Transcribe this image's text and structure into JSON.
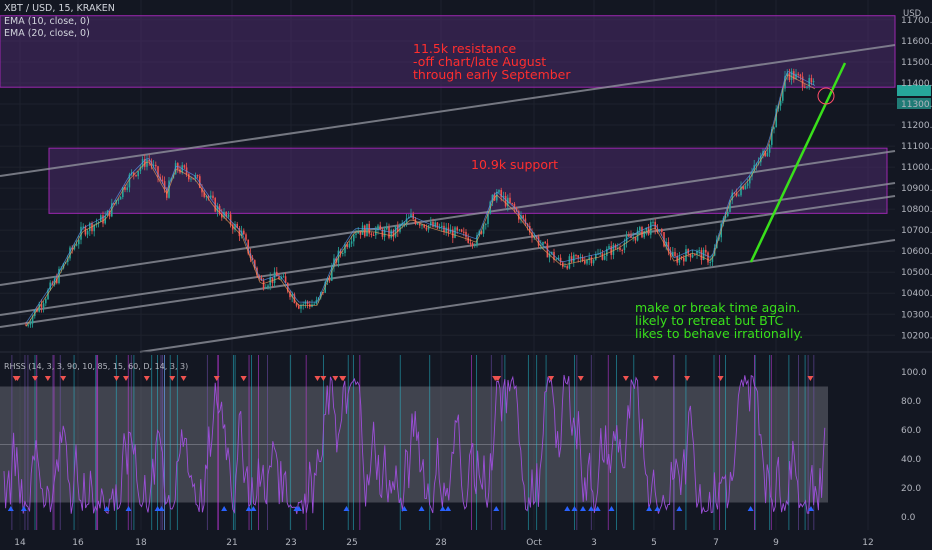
{
  "header": {
    "symbol_line": "XBT / USD, 15, KRAKEN",
    "indicator_1": "EMA (10, close, 0)",
    "indicator_2": "EMA (20, close, 0)",
    "currency": "USD"
  },
  "rhss_label": "RHSS (14, 3, 3, 90, 10, 85, 15, 60, D, 14, 3, 3)",
  "annotations": {
    "resistance": "11.5k resistance\n-off chart/late August\nthrough early September",
    "support": "10.9k support",
    "note": "make or break time again.\nlikely to retreat but BTC\nlikes to behave irrationally."
  },
  "colors": {
    "background": "#131722",
    "zone_fill": "#4a2a6a",
    "zone_border": "#9c27b0",
    "trendline": "#9598a1",
    "breakout_line": "#39e01b",
    "annotation_red": "#ff2e2e",
    "annotation_green": "#39e01b",
    "oscillator": "#9c4fd8",
    "candle_up": "#26a69a",
    "candle_down": "#ef5350"
  },
  "chart_data": [
    {
      "type": "line",
      "title": "XBT / USD, 15, KRAKEN",
      "x_ticks": [
        "14",
        "16",
        "18",
        "21",
        "23",
        "25",
        "28",
        "Oct",
        "3",
        "5",
        "7",
        "9",
        "12"
      ],
      "y_ticks": [
        10200.0,
        10300.0,
        10400.0,
        10500.0,
        10600.0,
        10700.0,
        10800.0,
        10900.0,
        11000.0,
        11100.0,
        11200.0,
        11300.0,
        11400.0,
        11500.0,
        11600.0,
        11700.0
      ],
      "ylim": [
        10130,
        11790
      ],
      "price_x": [
        0,
        3,
        6,
        8.5,
        11,
        13,
        15,
        16,
        18,
        20,
        23,
        25,
        27,
        29,
        31,
        33,
        35,
        37,
        39,
        41,
        43,
        46,
        48,
        50,
        52,
        55,
        57,
        59,
        61,
        63,
        65,
        67,
        69,
        71,
        73,
        75,
        77,
        79,
        81,
        84
      ],
      "price_y": [
        10250,
        10450,
        10700,
        10760,
        10950,
        11040,
        10880,
        11000,
        10950,
        10820,
        10680,
        10450,
        10480,
        10350,
        10350,
        10560,
        10700,
        10700,
        10680,
        10760,
        10720,
        10680,
        10650,
        10880,
        10800,
        10620,
        10540,
        10560,
        10580,
        10620,
        10680,
        10720,
        10560,
        10600,
        10560,
        10850,
        10950,
        11100,
        11450,
        11380
      ],
      "zones": [
        {
          "label": "11.5k resistance",
          "from": 11380,
          "to": 11720
        },
        {
          "label": "10.9k support",
          "from": 10780,
          "to": 11090
        }
      ],
      "grid": true
    },
    {
      "type": "line",
      "title": "RHSS (14, 3, 3, 90, 10, 85, 15, 60, D, 14, 3, 3)",
      "y_ticks": [
        0.0,
        20.0,
        40.0,
        60.0,
        80.0,
        100.0
      ],
      "ylim": [
        -5,
        108
      ],
      "band": [
        10,
        90
      ],
      "midline": 50
    }
  ]
}
